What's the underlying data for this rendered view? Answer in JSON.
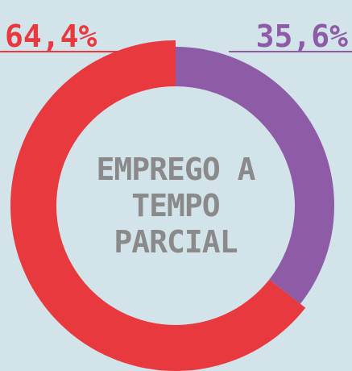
{
  "chart_data": {
    "type": "donut",
    "title": "EMPREGO A TEMPO PARCIAL",
    "categories": [
      null,
      null
    ],
    "values": [
      64.4,
      35.6
    ],
    "value_labels": [
      "64,4%",
      "35,6%"
    ],
    "colors": [
      "#e8393e",
      "#8e5ba7"
    ]
  }
}
